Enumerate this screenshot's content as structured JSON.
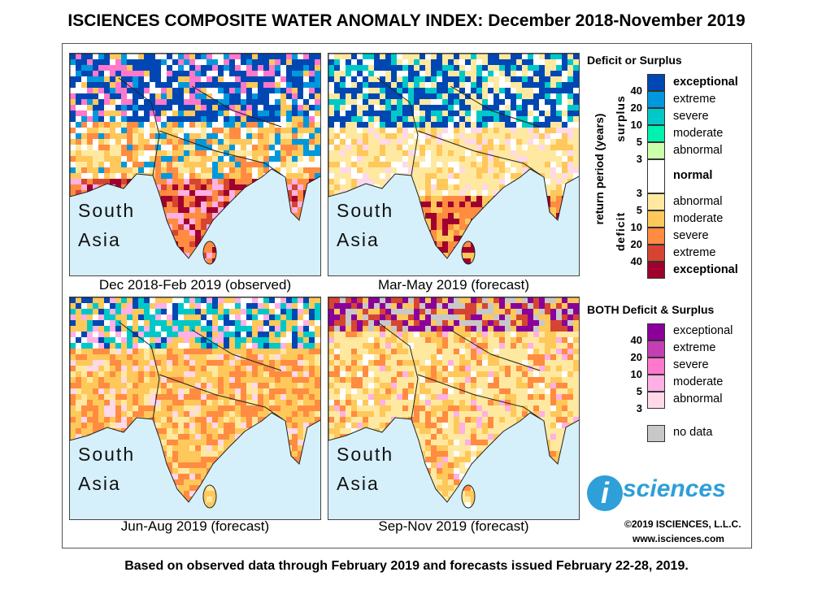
{
  "title": "ISCIENCES COMPOSITE WATER ANOMALY INDEX: December 2018-November 2019",
  "footer": "Based on observed data through February 2019 and forecasts issued February 22-28, 2019.",
  "panels": [
    {
      "region_line1": "South",
      "region_line2": "Asia",
      "caption": "Dec 2018-Feb 2019 (observed)",
      "theme": "wet-north-dry-south"
    },
    {
      "region_line1": "South",
      "region_line2": "Asia",
      "caption": "Mar-May 2019 (forecast)",
      "theme": "wet-north-mild"
    },
    {
      "region_line1": "South",
      "region_line2": "Asia",
      "caption": "Jun-Aug 2019 (forecast)",
      "theme": "widespread-deficit"
    },
    {
      "region_line1": "South",
      "region_line2": "Asia",
      "caption": "Sep-Nov 2019 (forecast)",
      "theme": "deficit-mixed"
    }
  ],
  "legend": {
    "title1": "Deficit or Surplus",
    "axis_label": "return period (years)",
    "surplus_label": "surplus",
    "deficit_label": "deficit",
    "surplus": [
      {
        "label": "exceptional",
        "color": "#0047b3",
        "bold": true
      },
      {
        "label": "extreme",
        "color": "#0098dc"
      },
      {
        "label": "severe",
        "color": "#00c8c8"
      },
      {
        "label": "moderate",
        "color": "#00f0b0"
      },
      {
        "label": "abnormal",
        "color": "#ccffaa"
      }
    ],
    "normal": {
      "label": "normal",
      "color": "#ffffff"
    },
    "deficit": [
      {
        "label": "abnormal",
        "color": "#ffe9a0"
      },
      {
        "label": "moderate",
        "color": "#ffc85a"
      },
      {
        "label": "severe",
        "color": "#ff8c40"
      },
      {
        "label": "extreme",
        "color": "#d64532"
      },
      {
        "label": "exceptional",
        "color": "#a0002e",
        "bold": true
      }
    ],
    "surplus_ticks": [
      "40",
      "20",
      "10",
      "5",
      "3"
    ],
    "deficit_ticks": [
      "3",
      "5",
      "10",
      "20",
      "40"
    ],
    "title2": "BOTH Deficit & Surplus",
    "both": [
      {
        "label": "exceptional",
        "color": "#8b0099"
      },
      {
        "label": "extreme",
        "color": "#c43fb4"
      },
      {
        "label": "severe",
        "color": "#ff78cc"
      },
      {
        "label": "moderate",
        "color": "#ffb0e4"
      },
      {
        "label": "abnormal",
        "color": "#ffd8ea"
      }
    ],
    "both_ticks": [
      "40",
      "20",
      "10",
      "5",
      "3"
    ],
    "nodata": {
      "label": "no data",
      "color": "#c8c8c8"
    }
  },
  "logo": {
    "text": "isciences",
    "copyright": "©2019 ISCIENCES, L.L.C.",
    "url": "www.isciences.com",
    "color": "#2e9fd8"
  }
}
